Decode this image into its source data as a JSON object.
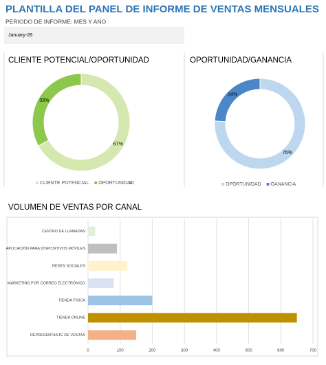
{
  "header": {
    "title": "PLANTILLA DEL PANEL DE INFORME DE VENTAS MENSUALES",
    "period_label": "PERIODO DE INFORME: MES Y ANO",
    "period_value": "January-28"
  },
  "chart_data": [
    {
      "type": "donut",
      "title": "CLIENTE POTENCIAL/OPORTUNIDAD",
      "categories": [
        "CLIENTE POTENCIAL",
        "OPORTUNIDAD"
      ],
      "values": [
        67,
        33
      ],
      "value_labels": [
        "67%",
        "33%"
      ],
      "colors": [
        "#d5e8b0",
        "#8cc84b"
      ]
    },
    {
      "type": "donut",
      "title": "OPORTUNIDAD/GANANCIA",
      "categories": [
        "OPORTUNIDAD",
        "GANANCIA"
      ],
      "values": [
        76,
        24
      ],
      "value_labels": [
        "76%",
        "24%"
      ],
      "colors": [
        "#bdd7ee",
        "#4a86c8"
      ]
    },
    {
      "type": "hbar",
      "title": "VOLUMEN DE VENTAS POR CANAL",
      "categories": [
        "CENTRO DE LLAMADAS",
        "APLICACIÓN PARA DISPOSITIVOS MÓVILES",
        "REDES SOCIALES",
        "MARKETING POR CORREO ELECTRÓNICO",
        "TIENDA FÍSICA",
        "TIENDA ONLINE",
        "REPRESENTANTE DE VENTAS"
      ],
      "values": [
        22,
        90,
        122,
        80,
        200,
        650,
        150
      ],
      "colors": [
        "#e2efda",
        "#bfbfbf",
        "#fff2cc",
        "#d9e1f2",
        "#9dc3e6",
        "#bf9000",
        "#f4b183"
      ],
      "xlim": [
        0,
        700
      ],
      "xticks": [
        0,
        100,
        200,
        300,
        400,
        500,
        600,
        700
      ],
      "grid": true
    }
  ]
}
